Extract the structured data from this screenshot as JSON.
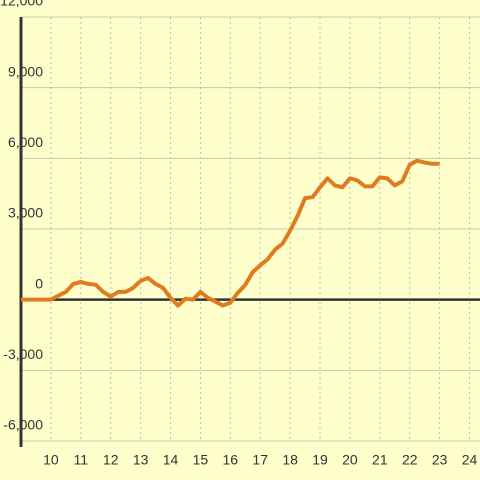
{
  "chart_data": {
    "type": "line",
    "x": [
      9,
      9.25,
      9.5,
      9.75,
      10,
      10.25,
      10.5,
      10.75,
      11,
      11.25,
      11.5,
      11.75,
      12,
      12.25,
      12.5,
      12.75,
      13,
      13.25,
      13.5,
      13.75,
      14,
      14.25,
      14.5,
      14.75,
      15,
      15.25,
      15.5,
      15.75,
      16,
      16.25,
      16.5,
      16.75,
      17,
      17.25,
      17.5,
      17.75,
      18,
      18.25,
      18.5,
      18.75,
      19,
      19.25,
      19.5,
      19.75,
      20,
      20.25,
      20.5,
      20.75,
      21,
      21.25,
      21.5,
      21.75,
      22,
      22.25,
      22.5,
      22.75,
      23
    ],
    "series": [
      {
        "color": "#e07b20",
        "values": [
          0,
          0,
          0,
          0,
          0,
          170,
          330,
          670,
          750,
          670,
          630,
          330,
          130,
          330,
          330,
          500,
          800,
          920,
          670,
          500,
          80,
          -250,
          40,
          0,
          330,
          80,
          -80,
          -250,
          -130,
          290,
          630,
          1170,
          1460,
          1720,
          2130,
          2380,
          2930,
          3560,
          4310,
          4350,
          4770,
          5150,
          4850,
          4770,
          5150,
          5060,
          4810,
          4810,
          5190,
          5150,
          4850,
          5020,
          5730,
          5900,
          5820,
          5770,
          5770
        ]
      }
    ],
    "xlim": [
      9,
      24.35
    ],
    "xticks": [
      10,
      11,
      12,
      13,
      14,
      15,
      16,
      17,
      18,
      19,
      20,
      21,
      22,
      23,
      24
    ],
    "ylim": [
      -6000,
      12000
    ],
    "yticks": [
      {
        "value": -6000,
        "label": "-6,000"
      },
      {
        "value": -3000,
        "label": "-3,000"
      },
      0,
      {
        "value": 3000,
        "label": "3,000"
      },
      {
        "value": 6000,
        "label": "6,000"
      },
      {
        "value": 9000,
        "label": "9,000"
      },
      {
        "value": 12000,
        "label": "12,000"
      }
    ],
    "grid": true,
    "background": "#ffffcc"
  }
}
